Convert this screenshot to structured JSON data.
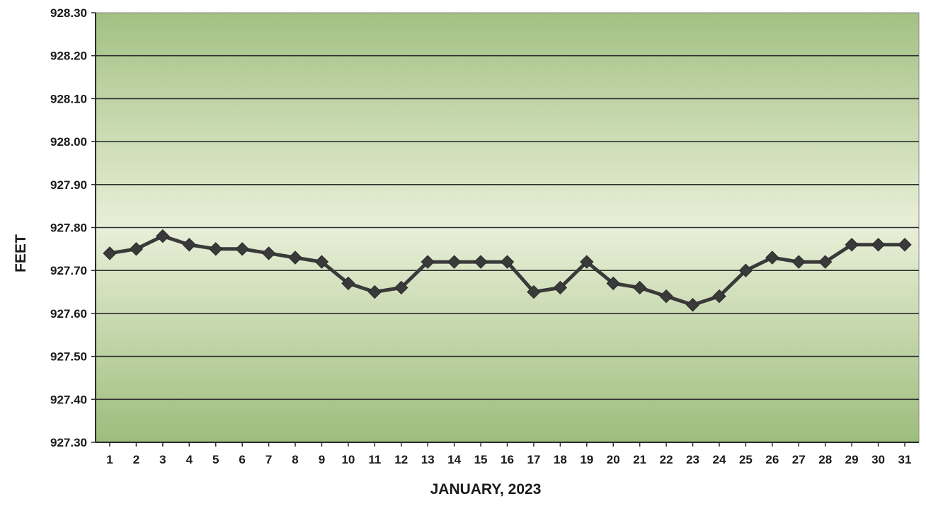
{
  "chart_data": {
    "type": "line",
    "title": "",
    "xlabel": "JANUARY, 2023",
    "ylabel": "FEET",
    "categories": [
      "1",
      "2",
      "3",
      "4",
      "5",
      "6",
      "7",
      "8",
      "9",
      "10",
      "11",
      "12",
      "13",
      "14",
      "15",
      "16",
      "17",
      "18",
      "19",
      "20",
      "21",
      "22",
      "23",
      "24",
      "25",
      "26",
      "27",
      "28",
      "29",
      "30",
      "31"
    ],
    "series": [
      {
        "values": [
          927.74,
          927.75,
          927.78,
          927.76,
          927.75,
          927.75,
          927.74,
          927.73,
          927.72,
          927.67,
          927.65,
          927.66,
          927.72,
          927.72,
          927.72,
          927.72,
          927.65,
          927.66,
          927.72,
          927.67,
          927.66,
          927.64,
          927.62,
          927.64,
          927.7,
          927.73,
          927.72,
          927.72,
          927.76,
          927.76,
          927.76
        ]
      }
    ],
    "ylim": [
      927.3,
      928.3
    ],
    "yticks": [
      "927.30",
      "927.40",
      "927.50",
      "927.60",
      "927.70",
      "927.80",
      "927.90",
      "928.00",
      "928.10",
      "928.20",
      "928.30"
    ],
    "grid": true,
    "colors": {
      "line": "#3a3a3a",
      "marker": "#3a3a3a",
      "gridline": "#2e2e2e",
      "plot_bg_edge": "#a9c48a",
      "plot_bg_center": "#e8efd6"
    }
  }
}
